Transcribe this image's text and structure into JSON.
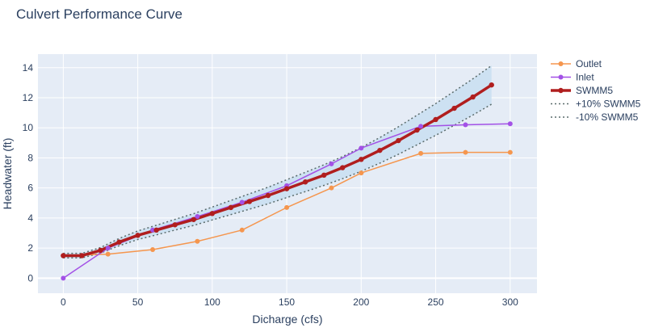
{
  "chart_data": {
    "type": "line",
    "title": "Culvert Performance Curve",
    "xlabel": "Dicharge (cfs)",
    "ylabel": "Headwater (ft)",
    "xlim": [
      -17,
      318
    ],
    "ylim": [
      -1,
      14.9
    ],
    "xticks": [
      0,
      50,
      100,
      150,
      200,
      250,
      300
    ],
    "yticks": [
      0,
      2,
      4,
      6,
      8,
      10,
      12,
      14
    ],
    "grid": true,
    "legend": "right",
    "colors": {
      "plot_bg": "#e5ecf6",
      "grid": "#ffffff",
      "outlet": "#f5964e",
      "inlet": "#a351e6",
      "swmm5": "#b01e1e",
      "band_fill": "#c9dff1",
      "bound_line": "#5a6b6b"
    },
    "series": [
      {
        "name": "Outlet",
        "x": [
          0,
          30,
          60,
          90,
          120,
          150,
          180,
          200,
          240,
          270,
          300
        ],
        "y": [
          1.5,
          1.6,
          1.9,
          2.45,
          3.2,
          4.7,
          6.0,
          7.0,
          8.3,
          8.37,
          8.37
        ]
      },
      {
        "name": "Inlet",
        "x": [
          0,
          30,
          60,
          90,
          120,
          150,
          180,
          200,
          240,
          270,
          300
        ],
        "y": [
          0.0,
          2.0,
          3.2,
          4.1,
          5.05,
          6.15,
          7.6,
          8.65,
          10.1,
          10.2,
          10.27
        ]
      },
      {
        "name": "SWMM5",
        "x": [
          0,
          12.5,
          25,
          37.5,
          50,
          62.5,
          75,
          87.5,
          100,
          112.5,
          125,
          137.5,
          150,
          162.5,
          175,
          187.5,
          200,
          212.5,
          225,
          237.5,
          250,
          262.5,
          275,
          287.5
        ],
        "y": [
          1.5,
          1.5,
          1.85,
          2.4,
          2.85,
          3.2,
          3.55,
          3.9,
          4.3,
          4.7,
          5.1,
          5.5,
          5.95,
          6.4,
          6.85,
          7.35,
          7.9,
          8.5,
          9.15,
          9.85,
          10.55,
          11.3,
          12.05,
          12.85
        ]
      },
      {
        "name": "+10% SWMM5",
        "x": [
          0,
          12.5,
          25,
          37.5,
          50,
          62.5,
          75,
          87.5,
          100,
          112.5,
          125,
          137.5,
          150,
          162.5,
          175,
          187.5,
          200,
          212.5,
          225,
          237.5,
          250,
          262.5,
          275,
          287.5
        ],
        "y": [
          1.65,
          1.65,
          2.04,
          2.64,
          3.14,
          3.52,
          3.91,
          4.29,
          4.73,
          5.17,
          5.61,
          6.05,
          6.55,
          7.04,
          7.54,
          8.09,
          8.69,
          9.35,
          10.07,
          10.84,
          11.61,
          12.43,
          13.26,
          14.14
        ]
      },
      {
        "name": "-10% SWMM5",
        "x": [
          0,
          12.5,
          25,
          37.5,
          50,
          62.5,
          75,
          87.5,
          100,
          112.5,
          125,
          137.5,
          150,
          162.5,
          175,
          187.5,
          200,
          212.5,
          225,
          237.5,
          250,
          262.5,
          275,
          287.5
        ],
        "y": [
          1.35,
          1.35,
          1.67,
          2.16,
          2.57,
          2.88,
          3.2,
          3.51,
          3.87,
          4.23,
          4.59,
          4.95,
          5.36,
          5.76,
          6.17,
          6.62,
          7.11,
          7.65,
          8.24,
          8.87,
          9.5,
          10.17,
          10.85,
          11.57
        ]
      }
    ]
  }
}
